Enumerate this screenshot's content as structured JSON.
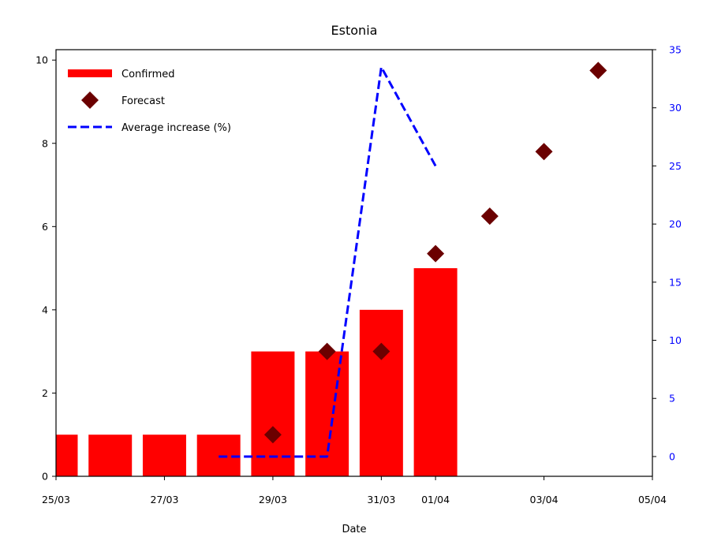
{
  "chart_data": {
    "type": "bar",
    "title": "Estonia",
    "xlabel": "Date",
    "ylabel": "",
    "x_ticks": [
      {
        "day": 0,
        "label": "25/03"
      },
      {
        "day": 2,
        "label": "27/03"
      },
      {
        "day": 4,
        "label": "29/03"
      },
      {
        "day": 6,
        "label": "31/03"
      },
      {
        "day": 7,
        "label": "01/04"
      },
      {
        "day": 9,
        "label": "03/04"
      },
      {
        "day": 11,
        "label": "05/04"
      }
    ],
    "xlim": [
      0,
      11
    ],
    "ylim": [
      0,
      10.25
    ],
    "y_ticks": [
      0,
      2,
      4,
      6,
      8,
      10
    ],
    "y2lim": [
      -1.7,
      35
    ],
    "y2_ticks": [
      0,
      5,
      10,
      15,
      20,
      25,
      30,
      35
    ],
    "legend_position": "top-left",
    "series": [
      {
        "name": "Confirmed",
        "kind": "bar",
        "color": "#ff0000",
        "points": [
          {
            "x": "25/03",
            "y": 1
          },
          {
            "x": "26/03",
            "y": 1
          },
          {
            "x": "27/03",
            "y": 1
          },
          {
            "x": "28/03",
            "y": 1
          },
          {
            "x": "29/03",
            "y": 3
          },
          {
            "x": "30/03",
            "y": 3
          },
          {
            "x": "31/03",
            "y": 4
          },
          {
            "x": "01/04",
            "y": 5
          }
        ]
      },
      {
        "name": "Forecast",
        "kind": "scatter",
        "color": "#6b0000",
        "marker": "diamond",
        "points": [
          {
            "x": "29/03",
            "y": 1
          },
          {
            "x": "30/03",
            "y": 3
          },
          {
            "x": "31/03",
            "y": 3
          },
          {
            "x": "01/04",
            "y": 5.35
          },
          {
            "x": "02/04",
            "y": 6.25
          },
          {
            "x": "03/04",
            "y": 7.8
          },
          {
            "x": "04/04",
            "y": 9.75
          }
        ]
      },
      {
        "name": "Average increase (%)",
        "kind": "line",
        "axis": "right",
        "color": "#0000ff",
        "dash": "dashed",
        "points": [
          {
            "x": "28/03",
            "y": 0
          },
          {
            "x": "29/03",
            "y": 0
          },
          {
            "x": "30/03",
            "y": 0
          },
          {
            "x": "31/03",
            "y": 33.5
          },
          {
            "x": "01/04",
            "y": 25
          }
        ]
      }
    ],
    "colors": {
      "axis": "#000000",
      "right_axis": "#0000ff"
    }
  }
}
